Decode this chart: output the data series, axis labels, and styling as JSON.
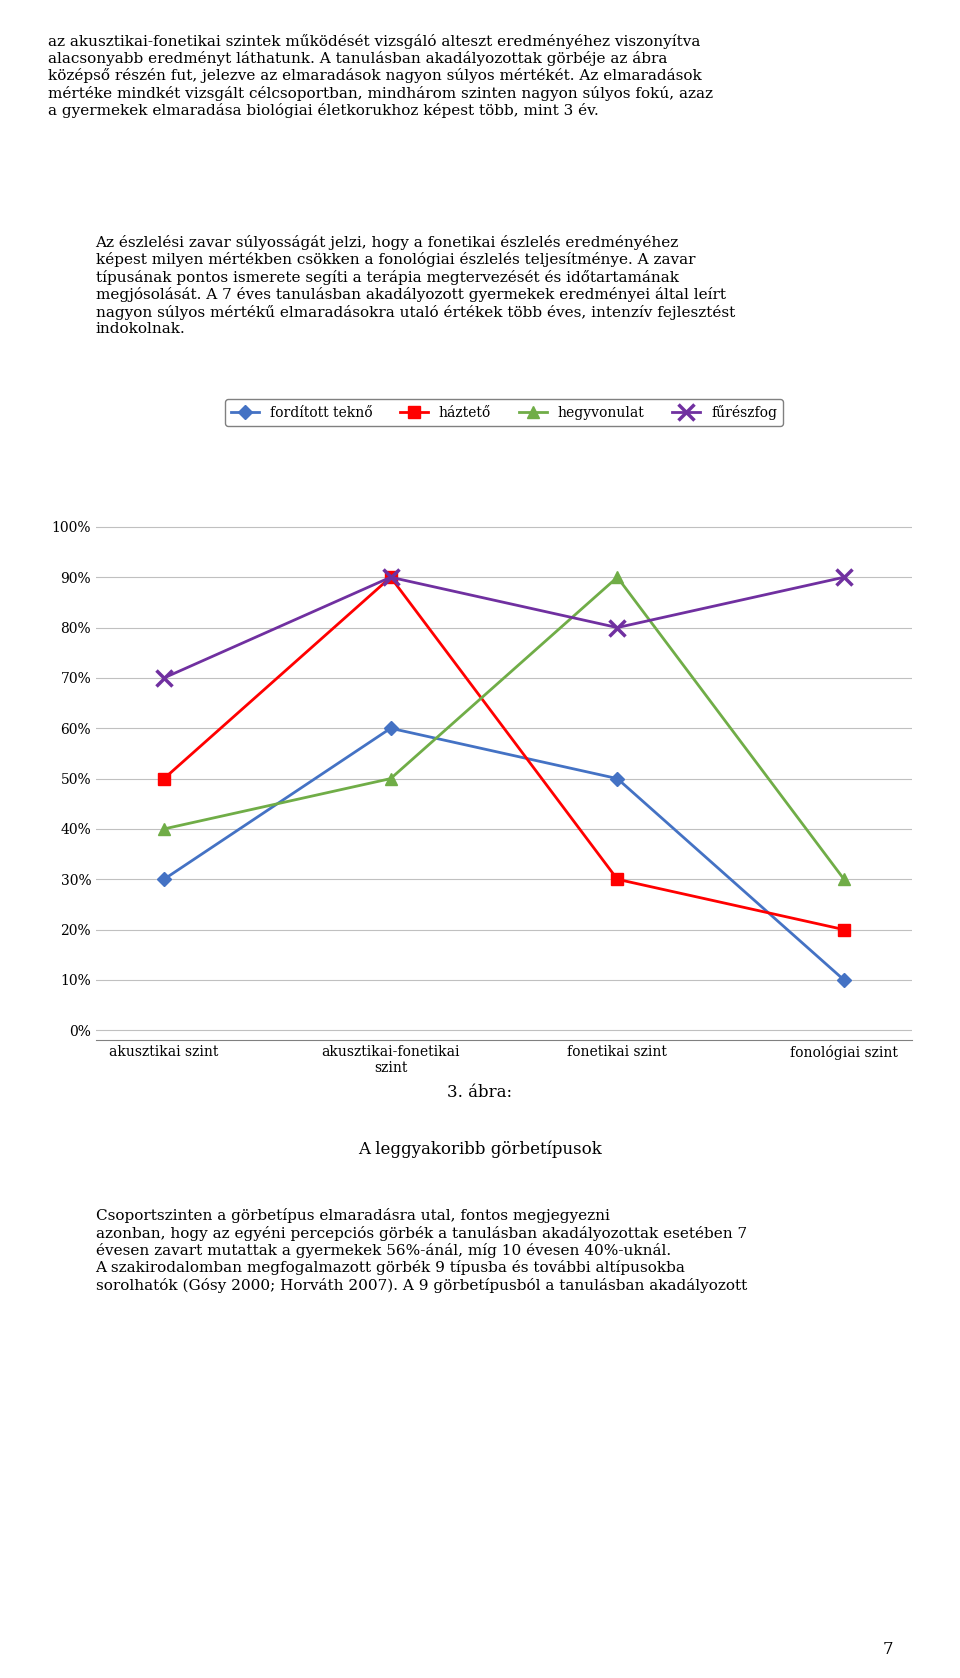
{
  "categories": [
    "akusztikai szint",
    "akusztikai-fonetikai\nszint",
    "fonetikai szint",
    "fonológiai szint"
  ],
  "series": {
    "fordított teknő": [
      0.3,
      0.6,
      0.5,
      0.1
    ],
    "háztető": [
      0.5,
      0.9,
      0.3,
      0.2
    ],
    "hegyvonulat": [
      0.4,
      0.5,
      0.9,
      0.3
    ],
    "fűrészfog": [
      0.7,
      0.9,
      0.8,
      0.9
    ]
  },
  "colors": {
    "fordított teknő": "#4472C4",
    "háztető": "#FF0000",
    "hegyvonulat": "#70AD47",
    "fűrészfog": "#7030A0"
  },
  "markers": {
    "fordított teknő": "D",
    "háztető": "s",
    "hegyvonulat": "^",
    "fűrészfog": "x"
  },
  "yticks": [
    0.0,
    0.1,
    0.2,
    0.3,
    0.4,
    0.5,
    0.6,
    0.7,
    0.8,
    0.9,
    1.0
  ],
  "ytick_labels": [
    "0%",
    "10%",
    "20%",
    "30%",
    "40%",
    "50%",
    "60%",
    "70%",
    "80%",
    "90%",
    "100%"
  ],
  "caption_line1": "3. ábra:",
  "caption_line2": "A leggyakoribb görbetípusok",
  "body_text": "Csoportszinten a görbetípus elmaradásra utal, fontos megjegyezni\nazonban, hogy az egyéni percepciós görbék a tanulásban akadályozottak esetében 7\névesen zavart mutattak a gyermekek 56%-ánál, míg 10 évesen 40%-uknál.\nA szakirodalomban megfogalmazott görbék 9 típusba és további altípusokba\nsorolhatók (Gósy 2000; Horváth 2007). A 9 görbetípusból a tanulásban akadályozott",
  "intro_text_1": "az akusztikai-fonetikai szintek működését vizsgáló alteszt eredményéhez viszonyítva\nalacsonyabb eredményt láthatunk. A tanulásban akadályozottak görbéje az ábra\nközépső részén fut, jelezve az elmaradások nagyon súlyos mértékét. Az elmaradások\nmértéke mindkét vizsgált célcsoportban, mindhárom szinten nagyon súlyos fokú, azaz\na gyermekek elmaradása biológiai életkorukhoz képest több, mint 3 év.",
  "intro_text_2": "Az észlelési zavar súlyosságát jelzi, hogy a fonetikai észlelés eredményéhez\nképest milyen mértékben csökken a fonológiai észlelés teljesítménye. A zavar\ntípusának pontos ismerete segíti a terápia megtervezését és időtartamának\nmegjósolását. A 7 éves tanulásban akadályozott gyermekek eredményei által leírt\nnagyon súlyos mértékű elmaradásokra utaló értékek több éves, intenzív fejlesztést\nindokolnak.",
  "page_number": "7",
  "background_color": "#FFFFFF",
  "grid_color": "#C0C0C0",
  "text_color": "#000000",
  "chart_bg": "#FFFFFF",
  "line_width": 2.0,
  "marker_size": 8,
  "legend_fontsize": 10,
  "axis_fontsize": 10,
  "caption_fontsize": 12,
  "body_fontsize": 11
}
